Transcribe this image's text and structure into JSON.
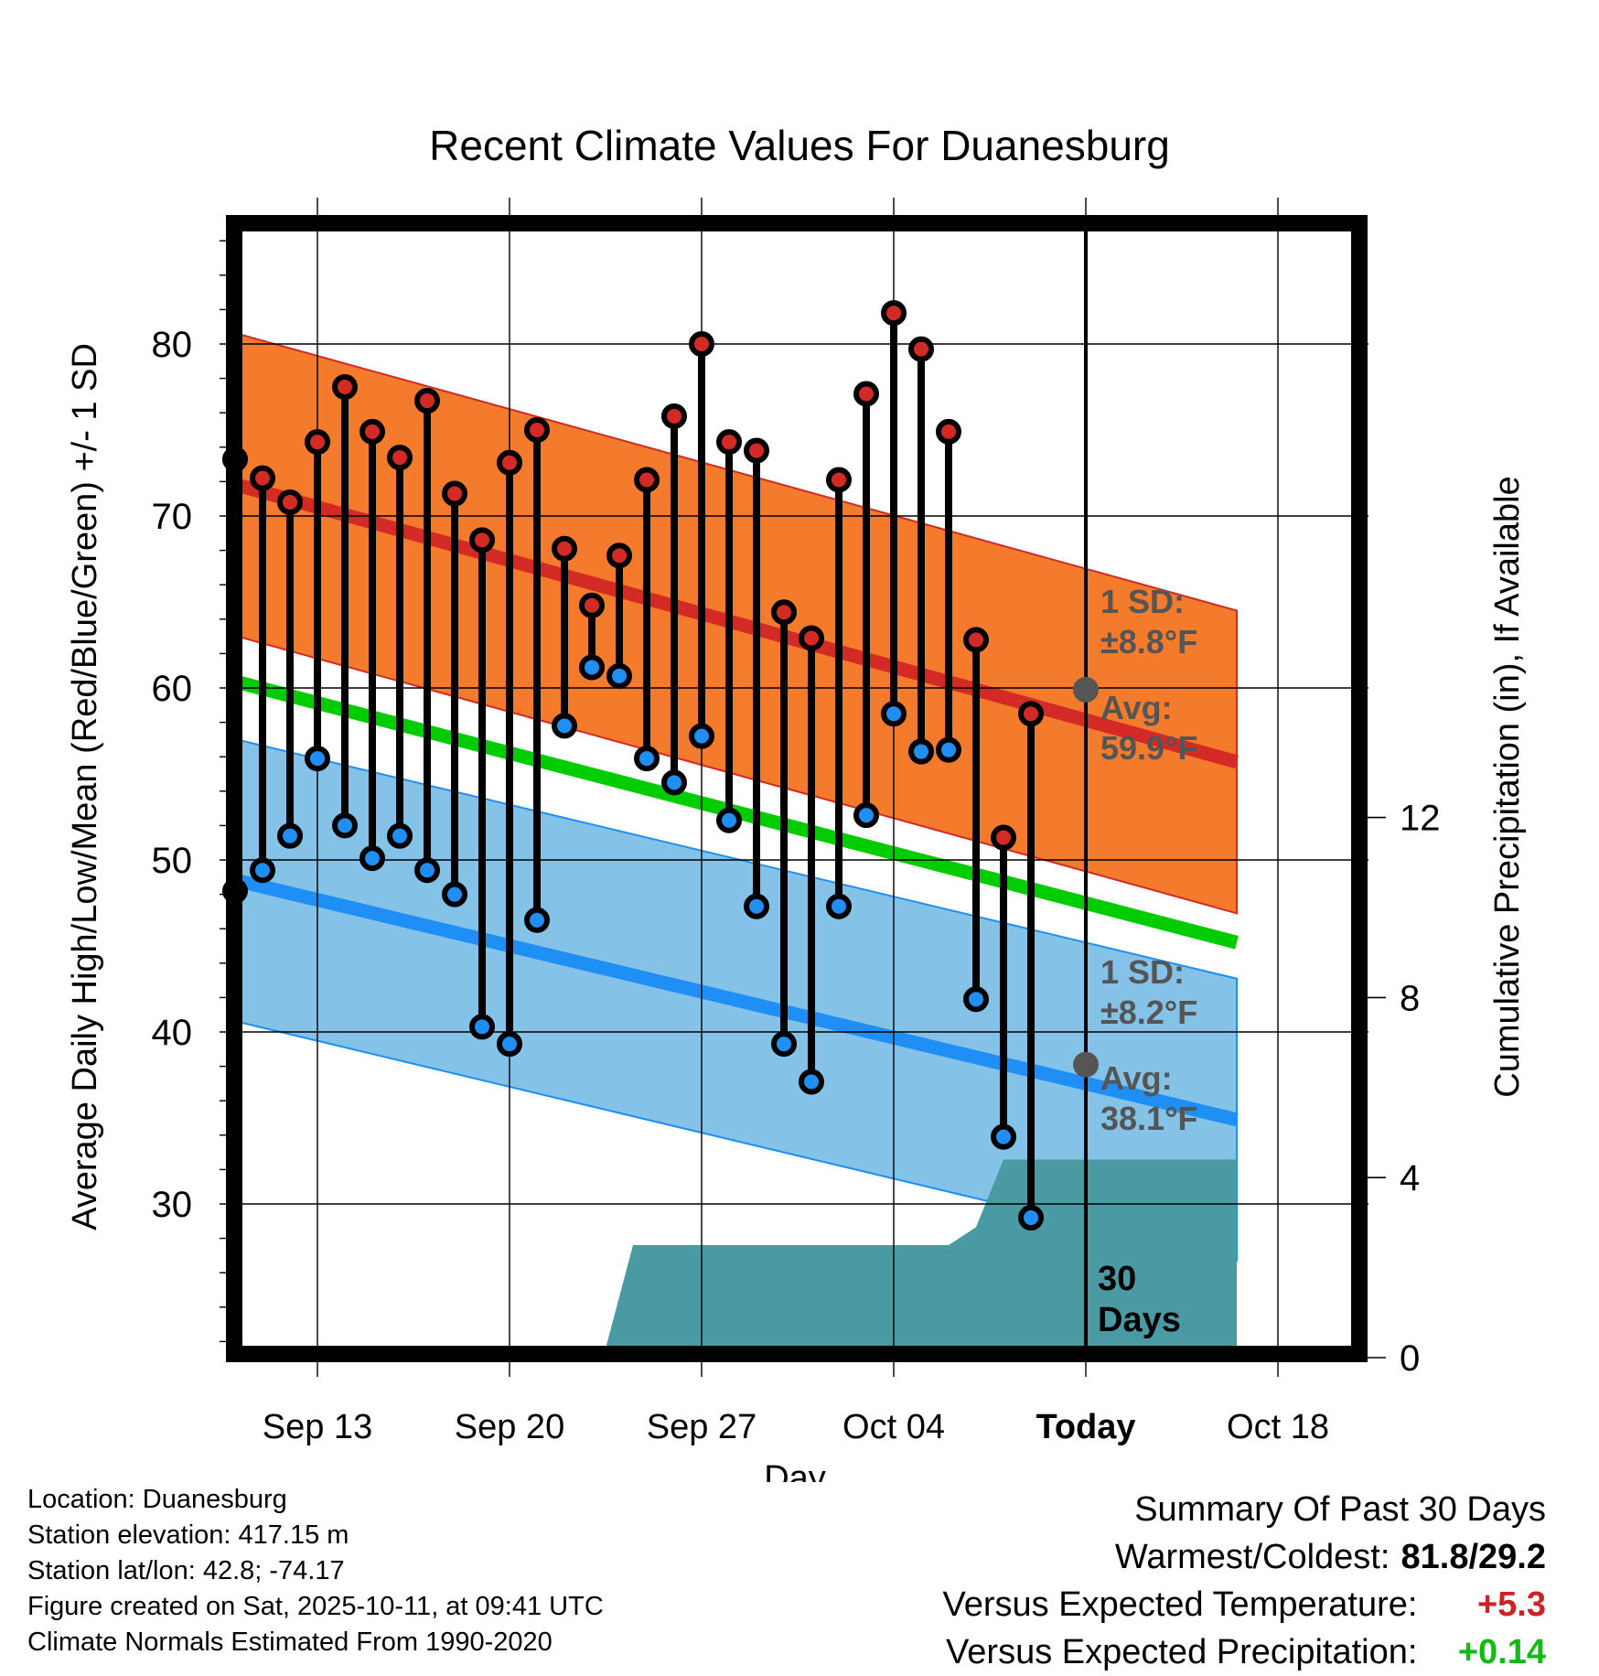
{
  "chart_data": {
    "type": "line",
    "title": "Recent Climate Values For Duanesburg",
    "xlabel": "Day",
    "ylabel": "Average Daily High/Low/Mean (Red/Blue/Green) +/- 1 SD",
    "y2label": "Cumulative Precipitation (in), If Available",
    "ylim": [
      20,
      86
    ],
    "y2lim": [
      0,
      20
    ],
    "xlim": [
      8.5,
      46.5
    ],
    "x_ticks": [
      {
        "day": 13,
        "label": "Sep 13"
      },
      {
        "day": 20,
        "label": "Sep 20"
      },
      {
        "day": 27,
        "label": "Sep 27"
      },
      {
        "day": 34,
        "label": "Oct 04"
      },
      {
        "day": 41,
        "label": "Today"
      },
      {
        "day": 48,
        "label": "Oct 18"
      }
    ],
    "y_ticks": [
      30,
      40,
      50,
      60,
      70,
      80
    ],
    "y2_ticks": [
      0,
      4,
      8,
      12
    ],
    "days": [
      10,
      11,
      12,
      13,
      14,
      15,
      16,
      17,
      18,
      19,
      20,
      21,
      22,
      23,
      24,
      25,
      26,
      27,
      28,
      29,
      30,
      31,
      32,
      33,
      34,
      35,
      36,
      37,
      38,
      39,
      40
    ],
    "highs": [
      73.3,
      72.2,
      70.8,
      74.3,
      77.5,
      74.9,
      73.4,
      76.7,
      71.3,
      68.6,
      73.1,
      75.0,
      68.1,
      64.8,
      67.7,
      72.1,
      75.8,
      80.0,
      74.3,
      73.8,
      64.4,
      62.9,
      72.1,
      77.1,
      81.8,
      79.7,
      74.9,
      62.8,
      51.3,
      58.5,
      null
    ],
    "lows": [
      48.2,
      49.4,
      51.4,
      55.9,
      52.0,
      50.1,
      51.4,
      49.4,
      48.0,
      40.3,
      39.3,
      46.5,
      57.8,
      61.2,
      60.7,
      55.9,
      54.5,
      57.2,
      52.3,
      47.3,
      39.3,
      37.1,
      47.3,
      52.6,
      58.5,
      56.3,
      56.4,
      41.9,
      33.9,
      29.2,
      null
    ],
    "normal_high": {
      "start": 72.5,
      "end": 55.7,
      "sd": "±8.8°F",
      "avg": "59.9°F",
      "today_value": 59.9
    },
    "normal_low": {
      "start": 49.4,
      "end": 34.9,
      "sd": "±8.2°F",
      "avg": "38.1°F",
      "today_value": 38.1
    },
    "normal_mean": {
      "start": 61.0,
      "end": 45.2
    },
    "precip_days": [
      8.5,
      21.5,
      22.5,
      23.5,
      24.5,
      33.5,
      34.5,
      35.5,
      36.0,
      37.0,
      38.0,
      39.0,
      46.5
    ],
    "precip_values": [
      0.0,
      0.0,
      0.0,
      0.2,
      2.5,
      2.5,
      2.5,
      2.5,
      2.5,
      2.9,
      4.4,
      4.4,
      4.4
    ],
    "today_day": 41,
    "window_label_line1": "30",
    "window_label_line2": "Days",
    "sd_label": "1 SD:",
    "avg_label": "Avg:",
    "colors": {
      "high_band": "#f47a2c",
      "high_line": "#d42a26",
      "low_band": "#84c2e8",
      "low_line": "#1f8ef5",
      "mean_line": "#00cc00",
      "precip": "#4a9aa4",
      "high_dot": "#d42a26",
      "low_dot": "#1f8ef5",
      "annotation": "#555555"
    }
  },
  "footer": {
    "location": "Location: Duanesburg",
    "elevation": "Station elevation: 417.15 m",
    "latlon": "Station lat/lon: 42.8; -74.17",
    "created": "Figure created on Sat, 2025-10-11, at 09:41 UTC",
    "normals": "Climate Normals Estimated From 1990-2020"
  },
  "summary": {
    "title": "Summary Of Past 30 Days",
    "warm_cold_label": "Warmest/Coldest:",
    "warm_cold_value": "81.8/29.2",
    "temp_label": "Versus Expected Temperature:",
    "temp_value": "+5.3",
    "temp_color": "#cc2222",
    "precip_label": "Versus Expected Precipitation:",
    "precip_value": "+0.14",
    "precip_color": "#11bb11"
  }
}
